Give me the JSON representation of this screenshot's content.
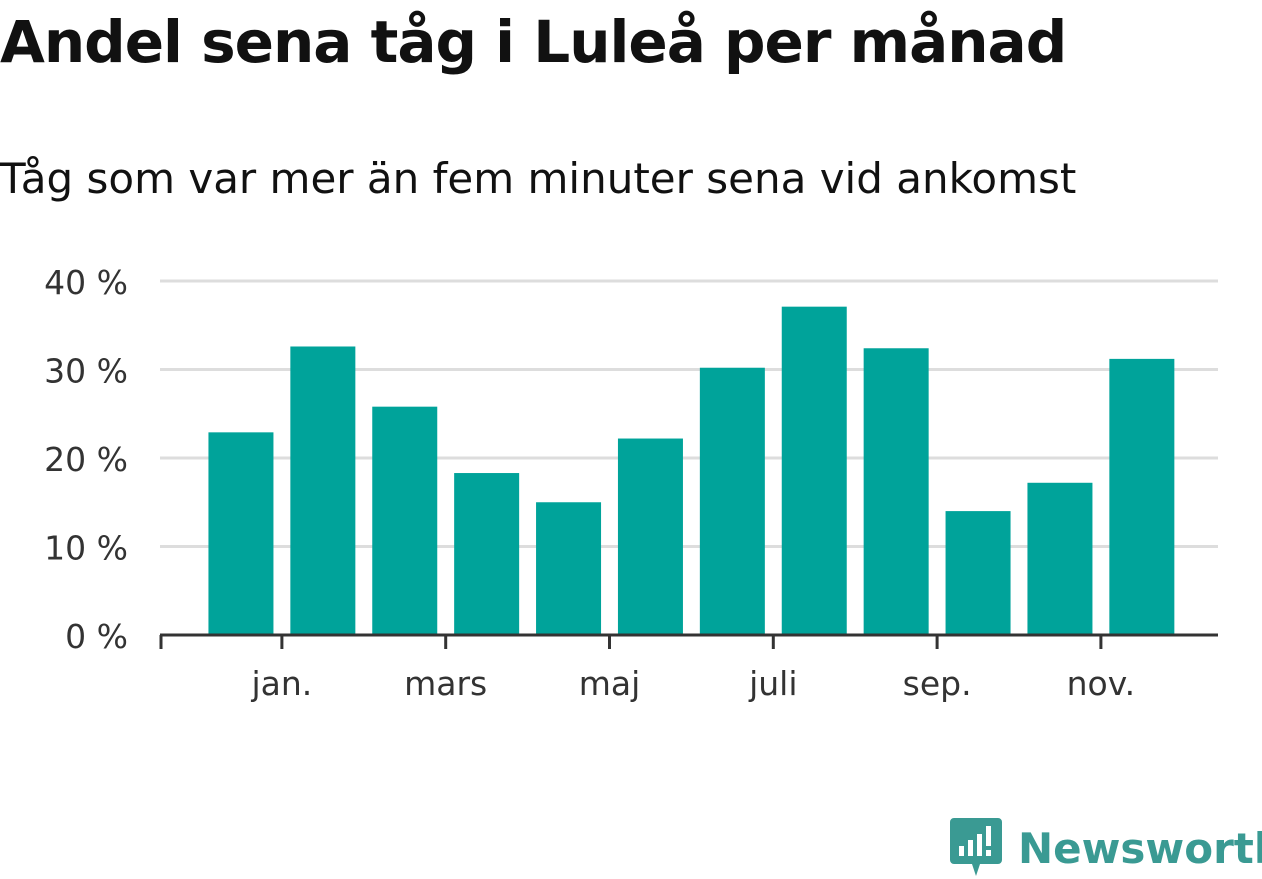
{
  "title": "Andel sena tåg i Luleå per månad",
  "subtitle": "Tåg som var mer än fem minuter sena vid ankomst",
  "brand": {
    "name": "Newsworthy",
    "color": "#3a9a93",
    "icon": "newsworthy-logo-icon"
  },
  "chart_data": {
    "type": "bar",
    "bar_color": "#00a39a",
    "y_ticks": [
      "0 %",
      "10 %",
      "20 %",
      "30 %",
      "40 %"
    ],
    "ylim": [
      0,
      40
    ],
    "grid": true,
    "x_tick_labels": [
      {
        "label": "jan.",
        "at": 1
      },
      {
        "label": "mars",
        "at": 3
      },
      {
        "label": "maj",
        "at": 5
      },
      {
        "label": "juli",
        "at": 7
      },
      {
        "label": "sep.",
        "at": 9
      },
      {
        "label": "nov.",
        "at": 11
      }
    ],
    "values": [
      22.9,
      32.6,
      25.8,
      18.3,
      15.0,
      22.2,
      30.2,
      37.1,
      32.4,
      14.0,
      17.2,
      31.2
    ]
  }
}
